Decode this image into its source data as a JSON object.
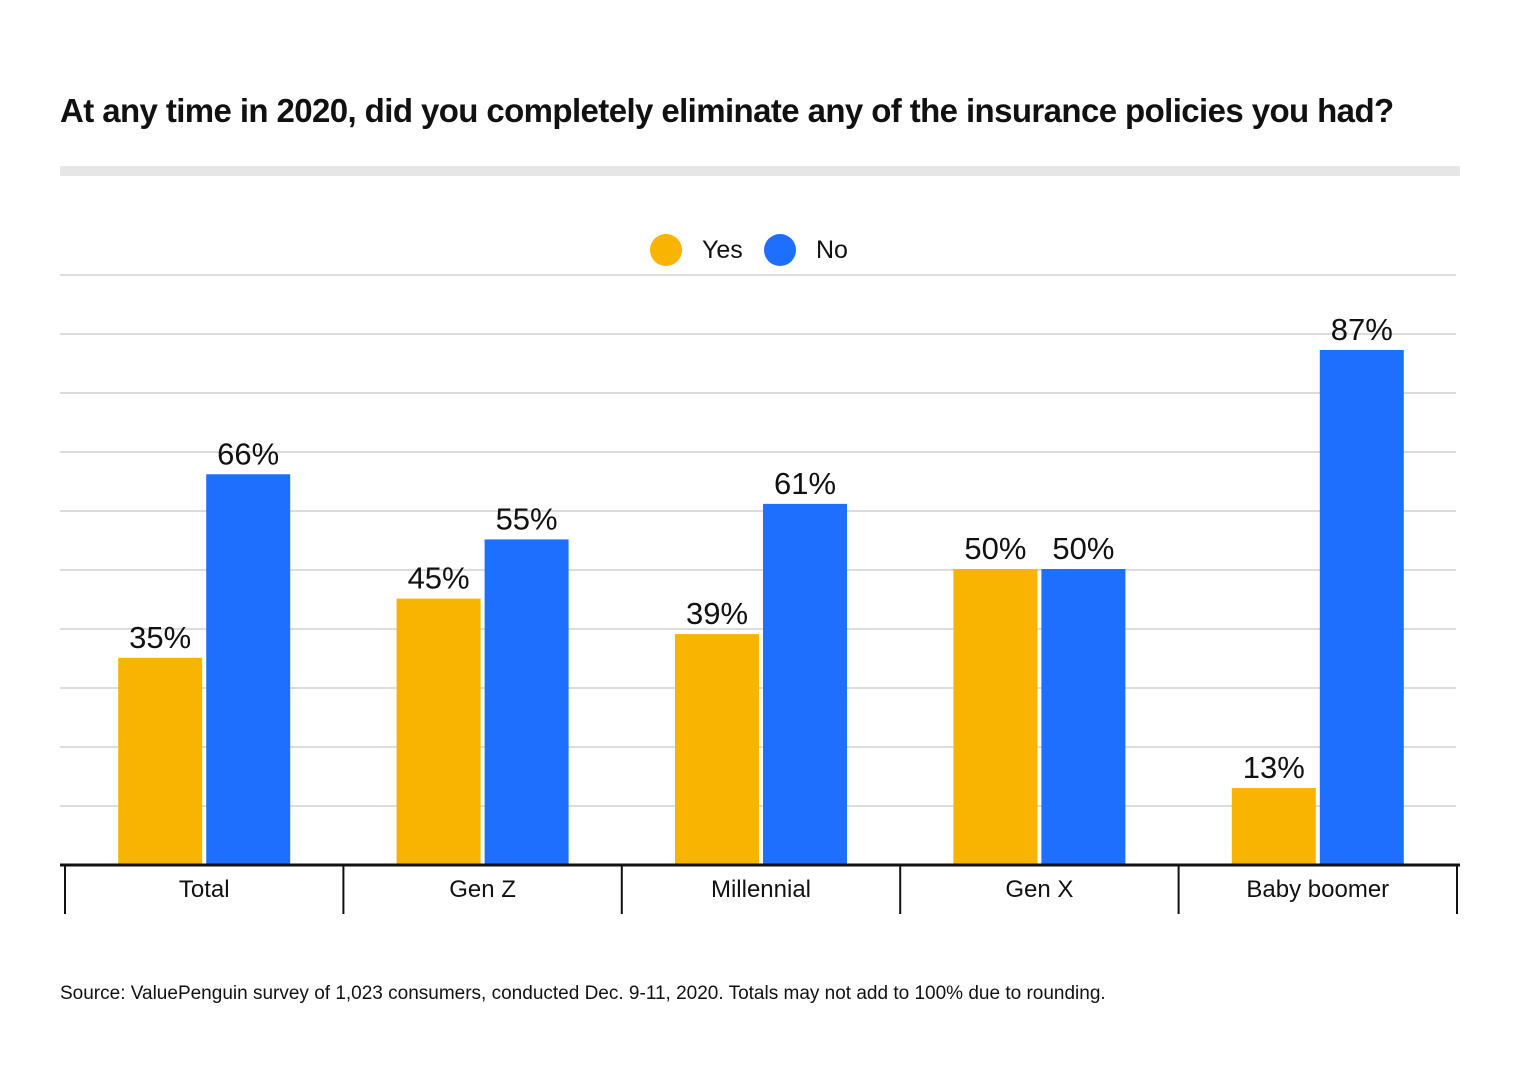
{
  "title": "At any time in 2020, did you completely eliminate any of the insurance policies you had?",
  "source": "Source: ValuePenguin survey of 1,023 consumers, conducted Dec. 9-11, 2020. Totals may not add to 100% due to rounding.",
  "colors": {
    "yes": "#F8B400",
    "no": "#1F6FFF",
    "grid": "#d0d0d0",
    "axis": "#111111"
  },
  "chart_data": {
    "type": "bar",
    "categories": [
      "Total",
      "Gen Z",
      "Millennial",
      "Gen X",
      "Baby boomer"
    ],
    "series": [
      {
        "name": "Yes",
        "values": [
          35,
          45,
          39,
          50,
          13
        ],
        "labels": [
          "35%",
          "45%",
          "39%",
          "50%",
          "13%"
        ]
      },
      {
        "name": "No",
        "values": [
          66,
          55,
          61,
          50,
          87
        ],
        "labels": [
          "66%",
          "55%",
          "61%",
          "50%",
          "87%"
        ]
      }
    ],
    "ylim": [
      0,
      100
    ],
    "grid": true,
    "legend": "top-center",
    "xlabel": "",
    "ylabel": ""
  }
}
